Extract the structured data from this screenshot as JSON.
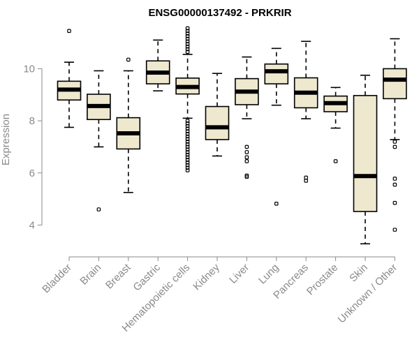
{
  "chart_data": {
    "type": "boxplot",
    "title": "ENSG00000137492 - PRKRIR",
    "ylabel": "Expression",
    "xlabel": "",
    "ylim": [
      3.1,
      11.7
    ],
    "yticks": [
      4,
      6,
      8,
      10
    ],
    "grid": false,
    "legend": "none",
    "box_fill": "#eee8cf",
    "categories": [
      "Bladder",
      "Brain",
      "Breast",
      "Gastric",
      "Hematopoietic cells",
      "Kidney",
      "Liver",
      "Lung",
      "Pancreas",
      "Prostate",
      "Skin",
      "Unknown / Other"
    ],
    "boxes": [
      {
        "whisker_low": 7.75,
        "q1": 8.8,
        "median": 9.2,
        "q3": 9.52,
        "whisker_high": 10.25,
        "outliers": [
          11.45
        ]
      },
      {
        "whisker_low": 7.0,
        "q1": 8.05,
        "median": 8.57,
        "q3": 9.02,
        "whisker_high": 9.92,
        "outliers": [
          4.6
        ]
      },
      {
        "whisker_low": 5.25,
        "q1": 6.92,
        "median": 7.52,
        "q3": 8.12,
        "whisker_high": 9.92,
        "outliers": [
          10.35
        ]
      },
      {
        "whisker_low": 9.15,
        "q1": 9.42,
        "median": 9.85,
        "q3": 10.3,
        "whisker_high": 11.1,
        "outliers": []
      },
      {
        "whisker_low": 8.1,
        "q1": 9.03,
        "median": 9.3,
        "q3": 9.64,
        "whisker_high": 10.55,
        "outliers": [
          6.1,
          6.2,
          6.3,
          6.4,
          6.5,
          6.6,
          6.7,
          6.8,
          6.9,
          7.0,
          7.1,
          7.2,
          7.3,
          7.4,
          7.5,
          7.6,
          7.7,
          7.8,
          7.9,
          8.0,
          10.65,
          10.75,
          10.85,
          10.95,
          11.05,
          11.15,
          11.25,
          11.35,
          11.45,
          11.55
        ]
      },
      {
        "whisker_low": 6.65,
        "q1": 7.28,
        "median": 7.75,
        "q3": 8.55,
        "whisker_high": 9.82,
        "outliers": []
      },
      {
        "whisker_low": 8.08,
        "q1": 8.62,
        "median": 9.12,
        "q3": 9.62,
        "whisker_high": 10.45,
        "outliers": [
          5.85,
          5.9,
          6.45,
          6.6,
          6.8,
          7.0
        ]
      },
      {
        "whisker_low": 8.6,
        "q1": 9.42,
        "median": 9.9,
        "q3": 10.18,
        "whisker_high": 10.78,
        "outliers": [
          4.82
        ]
      },
      {
        "whisker_low": 8.08,
        "q1": 8.5,
        "median": 9.08,
        "q3": 9.65,
        "whisker_high": 11.05,
        "outliers": [
          5.7,
          5.82
        ]
      },
      {
        "whisker_low": 7.72,
        "q1": 8.35,
        "median": 8.68,
        "q3": 8.95,
        "whisker_high": 9.28,
        "outliers": [
          6.45
        ]
      },
      {
        "whisker_low": 3.28,
        "q1": 4.52,
        "median": 5.88,
        "q3": 8.97,
        "whisker_high": 9.75,
        "outliers": []
      },
      {
        "whisker_low": 7.28,
        "q1": 8.85,
        "median": 9.58,
        "q3": 10.0,
        "whisker_high": 11.15,
        "outliers": [
          3.82,
          4.85,
          5.55,
          5.78,
          7.0,
          7.2
        ]
      }
    ]
  }
}
